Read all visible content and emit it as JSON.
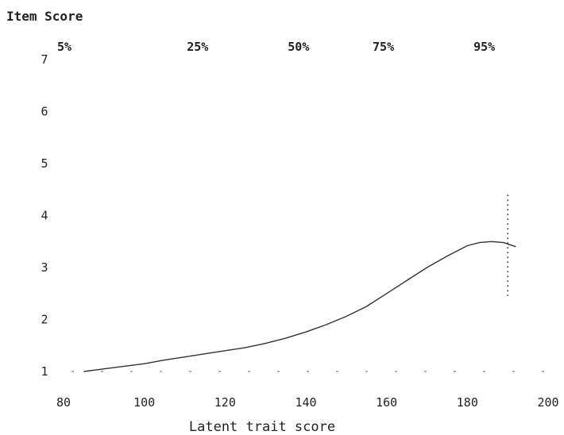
{
  "chart_data": {
    "type": "line",
    "title": "",
    "ylabel": "Item Score",
    "xlabel": "Latent trait score",
    "xlim": [
      80,
      200
    ],
    "ylim": [
      1,
      7
    ],
    "x_ticks": [
      {
        "value": 80,
        "label": "80"
      },
      {
        "value": 100,
        "label": "100"
      },
      {
        "value": 120,
        "label": "120"
      },
      {
        "value": 140,
        "label": "140"
      },
      {
        "value": 160,
        "label": "160"
      },
      {
        "value": 180,
        "label": "180"
      },
      {
        "value": 200,
        "label": "200"
      }
    ],
    "y_ticks": [
      {
        "value": 1,
        "label": "1"
      },
      {
        "value": 2,
        "label": "2"
      },
      {
        "value": 3,
        "label": "3"
      },
      {
        "value": 4,
        "label": "4"
      },
      {
        "value": 5,
        "label": "5"
      },
      {
        "value": 6,
        "label": "6"
      },
      {
        "value": 7,
        "label": "7"
      }
    ],
    "percentiles": [
      {
        "label": "5%",
        "x": 92
      },
      {
        "label": "25%",
        "x": 125
      },
      {
        "label": "50%",
        "x": 150
      },
      {
        "label": "75%",
        "x": 171
      },
      {
        "label": "95%",
        "x": 196
      }
    ],
    "series": [
      {
        "x": [
          85,
          90,
          95,
          100,
          105,
          110,
          115,
          120,
          125,
          130,
          135,
          140,
          145,
          150,
          155,
          160,
          165,
          170,
          175,
          180,
          183,
          186,
          189,
          192
        ],
        "y": [
          1.0,
          1.05,
          1.1,
          1.15,
          1.22,
          1.28,
          1.34,
          1.4,
          1.46,
          1.54,
          1.64,
          1.76,
          1.9,
          2.06,
          2.25,
          2.5,
          2.75,
          3.0,
          3.22,
          3.42,
          3.48,
          3.5,
          3.48,
          3.4
        ]
      }
    ],
    "vertical_line": {
      "x": 190,
      "y_from": 2.45,
      "y_to": 4.4
    },
    "grid": false,
    "legend": "none"
  }
}
